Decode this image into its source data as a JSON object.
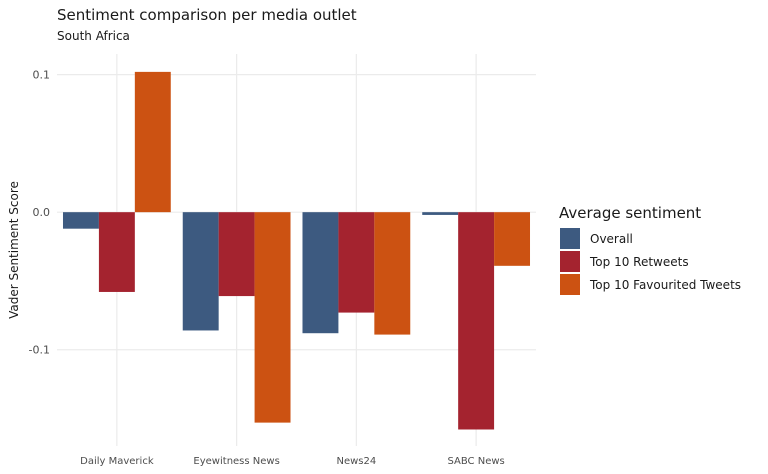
{
  "chart_data": {
    "type": "bar",
    "title": "Sentiment comparison per media outlet",
    "subtitle": "South Africa",
    "xlabel": "",
    "ylabel": "Vader Sentiment Score",
    "categories": [
      "Daily Maverick",
      "Eyewitness News",
      "News24",
      "SABC News"
    ],
    "series": [
      {
        "name": "Overall",
        "color": "#3d5a80",
        "values": [
          -0.012,
          -0.086,
          -0.088,
          -0.002
        ]
      },
      {
        "name": "Top 10 Retweets",
        "color": "#a4232f",
        "values": [
          -0.058,
          -0.061,
          -0.073,
          -0.158
        ]
      },
      {
        "name": "Top 10 Favourited Tweets",
        "color": "#cc5212",
        "values": [
          0.102,
          -0.153,
          -0.089,
          -0.039
        ]
      }
    ],
    "ylim": [
      -0.17,
      0.115
    ],
    "yticks": [
      0.1,
      0.0,
      -0.1
    ],
    "ytick_labels": [
      "0.1",
      "0.0",
      "-0.1"
    ],
    "legend_title": "Average sentiment",
    "legend_position": "right",
    "grid": true
  }
}
